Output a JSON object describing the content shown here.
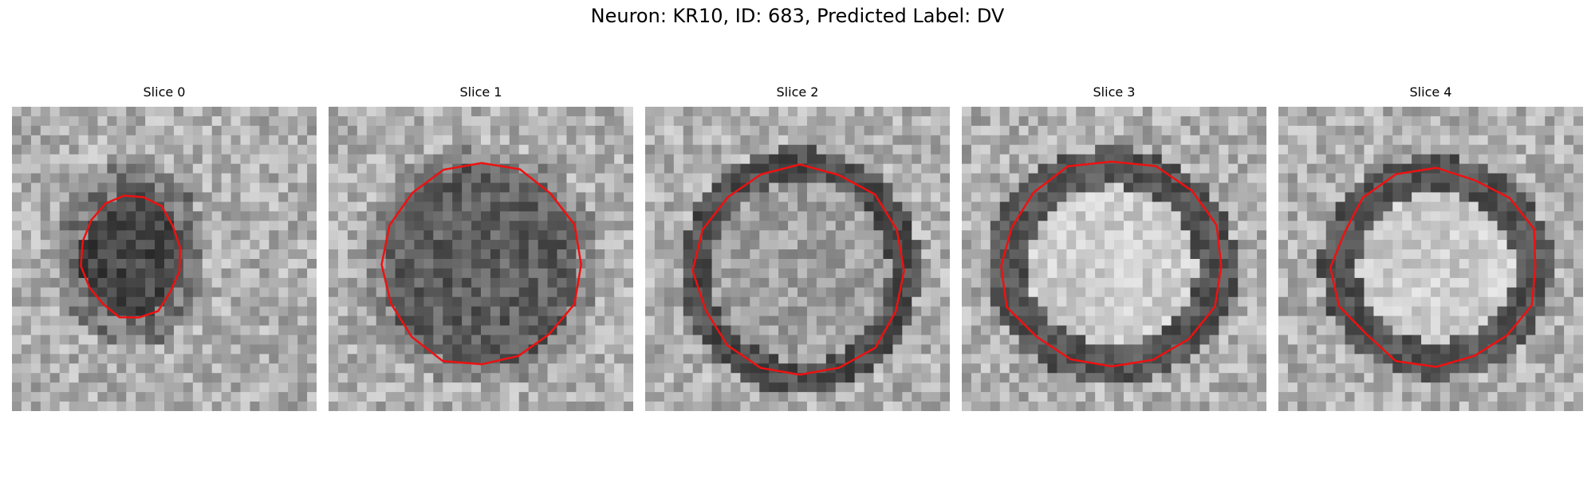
{
  "figure": {
    "title": "Neuron: KR10, ID: 683, Predicted Label: DV"
  },
  "panels": [
    {
      "title": "Slice 0",
      "style": "dark-blob"
    },
    {
      "title": "Slice 1",
      "style": "dark-disk"
    },
    {
      "title": "Slice 2",
      "style": "ring-light"
    },
    {
      "title": "Slice 3",
      "style": "ring-bright"
    },
    {
      "title": "Slice 4",
      "style": "ring-bright"
    }
  ],
  "colors": {
    "contour": "#ee1111"
  }
}
